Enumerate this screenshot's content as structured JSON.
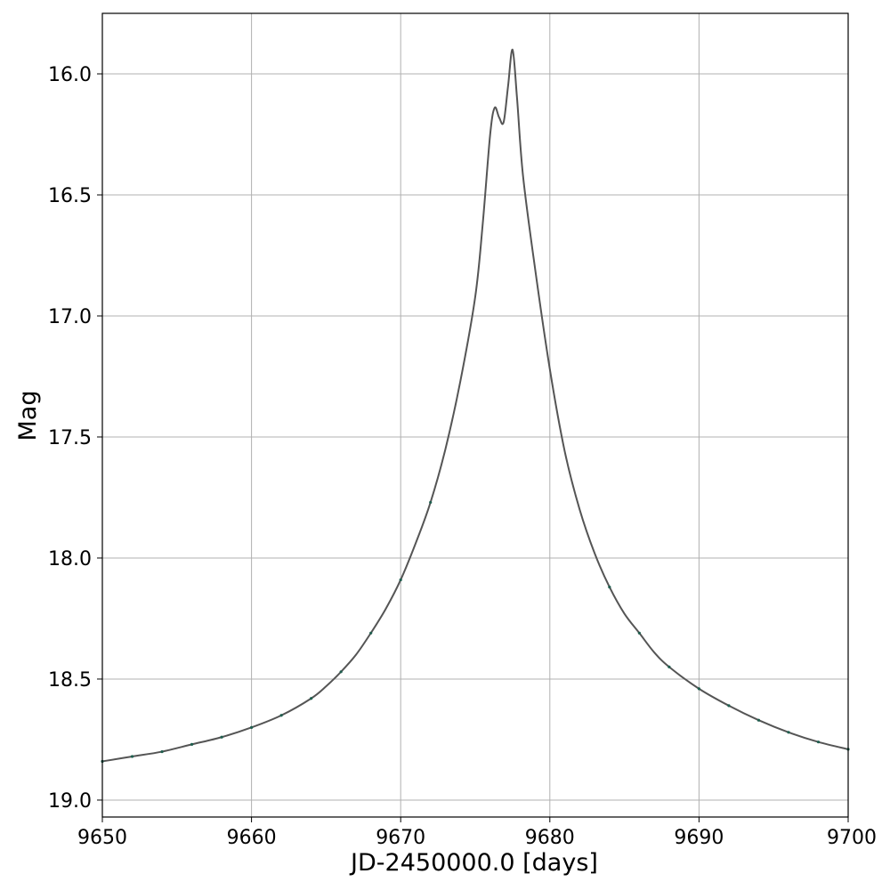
{
  "chart_data": {
    "type": "line",
    "title": "",
    "xlabel": "JD-2450000.0 [days]",
    "ylabel": "Mag",
    "xlim": [
      9650,
      9700
    ],
    "ylim": [
      19.07,
      15.75
    ],
    "y_inverted": true,
    "grid": true,
    "x_ticks": [
      9650,
      9660,
      9670,
      9680,
      9690,
      9700
    ],
    "x_tick_labels": [
      "9650",
      "9660",
      "9670",
      "9680",
      "9690",
      "9700"
    ],
    "y_ticks": [
      16.0,
      16.5,
      17.0,
      17.5,
      18.0,
      18.5,
      19.0
    ],
    "y_tick_labels": [
      "16.0",
      "16.5",
      "17.0",
      "17.5",
      "18.0",
      "18.5",
      "19.0"
    ],
    "series": [
      {
        "style": "model-line",
        "color": "#555555",
        "x": [
          9650,
          9652,
          9654,
          9656,
          9658,
          9660,
          9662,
          9664,
          9665,
          9666,
          9667,
          9668,
          9669,
          9670,
          9671,
          9672,
          9673,
          9674,
          9675,
          9675.5,
          9676,
          9676.3,
          9676.6,
          9676.9,
          9677.2,
          9677.5,
          9677.8,
          9678.2,
          9679,
          9680,
          9681,
          9682,
          9683,
          9684,
          9685,
          9686,
          9687,
          9688,
          9690,
          9692,
          9694,
          9696,
          9698,
          9700
        ],
        "y": [
          18.84,
          18.82,
          18.8,
          18.77,
          18.74,
          18.7,
          18.65,
          18.58,
          18.53,
          18.47,
          18.4,
          18.31,
          18.21,
          18.09,
          17.94,
          17.77,
          17.55,
          17.27,
          16.92,
          16.62,
          16.25,
          16.14,
          16.18,
          16.2,
          16.05,
          15.9,
          16.1,
          16.42,
          16.8,
          17.22,
          17.56,
          17.8,
          17.98,
          18.12,
          18.23,
          18.31,
          18.39,
          18.45,
          18.54,
          18.61,
          18.67,
          18.72,
          18.76,
          18.79
        ]
      },
      {
        "style": "data-points",
        "color": "#1f5e4e",
        "x": [
          9650,
          9652,
          9654,
          9656,
          9658,
          9660,
          9662,
          9664,
          9666,
          9668,
          9670,
          9672,
          9684,
          9686,
          9688,
          9690,
          9692,
          9694,
          9696,
          9698,
          9700
        ],
        "y": [
          18.84,
          18.82,
          18.8,
          18.77,
          18.74,
          18.7,
          18.65,
          18.58,
          18.47,
          18.31,
          18.09,
          17.77,
          18.12,
          18.31,
          18.45,
          18.54,
          18.61,
          18.67,
          18.72,
          18.76,
          18.79
        ]
      }
    ]
  }
}
